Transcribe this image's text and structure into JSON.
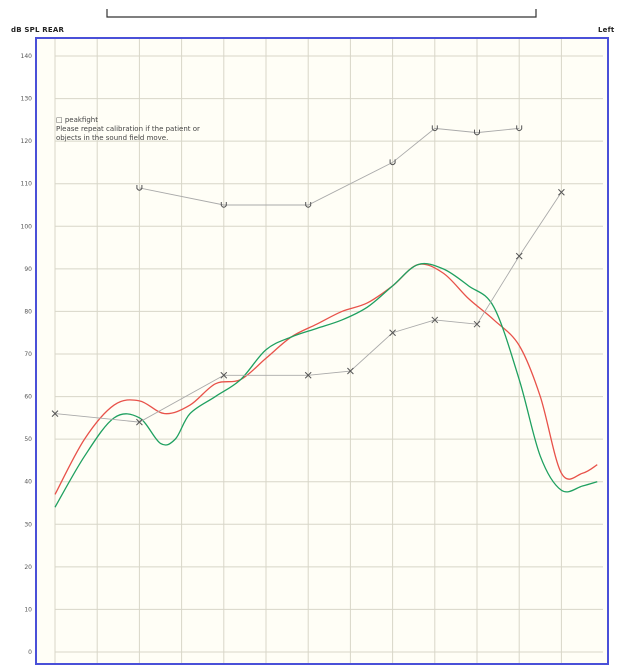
{
  "header": {
    "y_unit_label": "dB SPL REAR",
    "ear_label": "Left"
  },
  "annotation": {
    "lines": [
      "□ peakfight",
      "Please repeat calibration if the patient or",
      "objects in the sound field move."
    ]
  },
  "chart_data": {
    "type": "line",
    "title": "",
    "xlabel": "",
    "ylabel": "dB SPL REAR",
    "ylim": [
      0,
      145
    ],
    "yticks": [
      0,
      10,
      20,
      30,
      40,
      50,
      60,
      70,
      80,
      90,
      100,
      110,
      120,
      130,
      140
    ],
    "xlim": [
      0,
      13
    ],
    "grid": true,
    "legend": "none",
    "series": [
      {
        "name": "",
        "color": "#e8524a",
        "marker": "none",
        "x": [
          0,
          0.7,
          1.4,
          2.0,
          2.6,
          3.2,
          3.8,
          4.4,
          5.0,
          5.6,
          6.2,
          6.8,
          7.4,
          8.0,
          8.6,
          9.2,
          9.8,
          10.4,
          11.0,
          11.5,
          12.0,
          12.5,
          12.85
        ],
        "y": [
          37,
          50,
          58,
          59,
          56,
          58,
          63,
          64,
          69,
          74,
          77,
          80,
          82,
          86,
          91,
          89,
          83,
          78,
          72,
          60,
          42,
          42,
          44
        ]
      },
      {
        "name": "",
        "color": "#1fa060",
        "marker": "none",
        "x": [
          0,
          0.7,
          1.4,
          2.0,
          2.5,
          2.85,
          3.2,
          3.8,
          4.4,
          5.0,
          5.6,
          6.2,
          6.8,
          7.4,
          8.0,
          8.6,
          9.2,
          9.8,
          10.4,
          11.0,
          11.5,
          12.0,
          12.5,
          12.85
        ],
        "y": [
          34,
          46,
          55,
          55,
          49,
          50,
          56,
          60,
          64,
          71,
          74,
          76,
          78,
          81,
          86,
          91,
          90,
          86,
          81,
          64,
          46,
          38,
          39,
          40
        ]
      },
      {
        "name": "",
        "color": "#aaaaaa",
        "marker": "x",
        "x": [
          0,
          2,
          4,
          6,
          7,
          8,
          9,
          10,
          11,
          12
        ],
        "y": [
          56,
          54,
          65,
          65,
          66,
          75,
          78,
          77,
          93,
          108
        ]
      },
      {
        "name": "",
        "color": "#aaaaaa",
        "marker": "U",
        "x": [
          2,
          4,
          6,
          8,
          9,
          10,
          11
        ],
        "y": [
          109,
          105,
          105,
          115,
          123,
          122,
          123
        ]
      }
    ]
  }
}
